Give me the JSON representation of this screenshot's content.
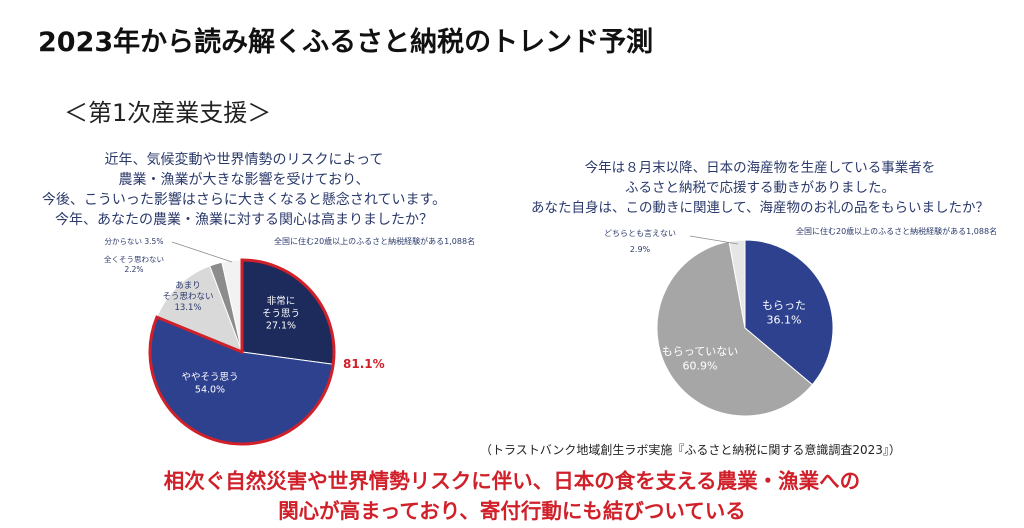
{
  "title": "2023年から読み解くふるさと納税のトレンド予測",
  "subtitle": "＜第1次産業支援＞",
  "chart_data": [
    {
      "type": "pie",
      "question": [
        "近年、気候変動や世界情勢のリスクによって",
        "農業・漁業が大きな影響を受けており、",
        "今後、こういった影響はさらに大きくなると懸念されています。",
        "今年、あなたの農業・漁業に対する関心は高まりましたか？"
      ],
      "note": "全国に住む20歳以上のふるさと納税経験がある1,088名",
      "slices": [
        {
          "label": "非常に\nそう思う",
          "value": 27.1,
          "value_text": "27.1%",
          "color": "#1c2a5c",
          "text_color": "#ffffff"
        },
        {
          "label": "ややそう思う",
          "value": 54.0,
          "value_text": "54.0%",
          "color": "#2e418f",
          "text_color": "#ffffff"
        },
        {
          "label": "あまり\nそう思わない",
          "value": 13.1,
          "value_text": "13.1%",
          "color": "#d9d9d9",
          "text_color": "#2b3a6b"
        },
        {
          "label": "全くそう思わない",
          "value": 2.2,
          "value_text": "2.2%",
          "color": "#8c8c8c",
          "text_color": "#2b3a6b"
        },
        {
          "label": "分からない",
          "value": 3.5,
          "value_text": "3.5%",
          "color": "#f2f2f2",
          "text_color": "#2b3a6b"
        }
      ],
      "highlight": {
        "label": "81.1%",
        "color": "#d0202a"
      }
    },
    {
      "type": "pie",
      "question": [
        "今年は８月末以降、日本の海産物を生産している事業者を",
        "ふるさと納税で応援する動きがありました。",
        "あなた自身は、この動きに関連して、海産物のお礼の品をもらいましたか？"
      ],
      "note": "全国に住む20歳以上のふるさと納税経験がある1,088名",
      "slices": [
        {
          "label": "もらった",
          "value": 36.1,
          "value_text": "36.1%",
          "color": "#2e418f",
          "text_color": "#ffffff"
        },
        {
          "label": "もらっていない",
          "value": 60.9,
          "value_text": "60.9%",
          "color": "#a6a6a6",
          "text_color": "#ffffff"
        },
        {
          "label": "どちらとも言えない",
          "value": 2.9,
          "value_text": "2.9%",
          "color": "#e6e6e6",
          "text_color": "#2b3a6b"
        }
      ]
    }
  ],
  "source": "（トラストバンク地域創生ラボ実施『ふるさと納税に関する意識調査2023』）",
  "conclusion": [
    "相次ぐ自然災害や世界情勢リスクに伴い、日本の食を支える農業・漁業への",
    "関心が高まっており、寄付行動にも結びついている"
  ]
}
